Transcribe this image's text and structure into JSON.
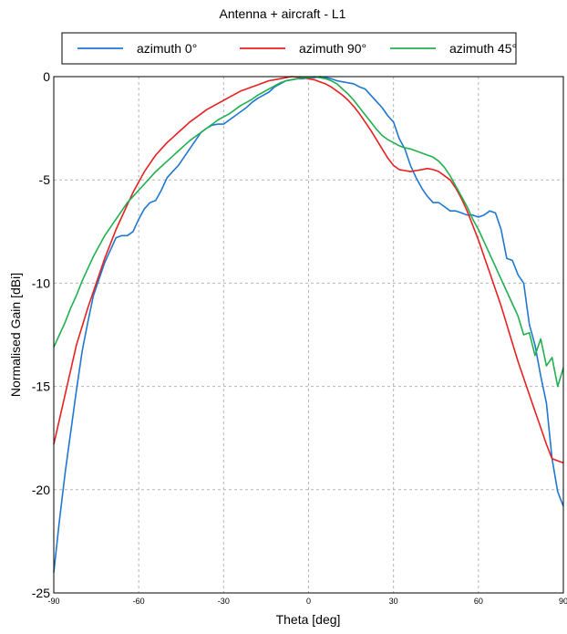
{
  "chart_data": {
    "type": "line",
    "title": "Antenna + aircraft - L1",
    "xlabel": "Theta [deg]",
    "ylabel": "Normalised Gain [dBi]",
    "xlim": [
      -90,
      90
    ],
    "ylim": [
      -25,
      0
    ],
    "xticks": [
      -90,
      -60,
      -30,
      0,
      30,
      60,
      90
    ],
    "yticks": [
      0,
      -5,
      -10,
      -15,
      -20,
      -25
    ],
    "grid": true,
    "legend_position": "top",
    "series": [
      {
        "name": "azimuth 0°",
        "color": "#1f77d0",
        "x": [
          -90,
          -88,
          -86,
          -84,
          -82,
          -80,
          -78,
          -76,
          -74,
          -72,
          -70,
          -68,
          -66,
          -64,
          -62,
          -60,
          -58,
          -56,
          -54,
          -52,
          -50,
          -48,
          -46,
          -44,
          -42,
          -40,
          -38,
          -36,
          -34,
          -32,
          -30,
          -28,
          -26,
          -24,
          -22,
          -20,
          -18,
          -16,
          -14,
          -12,
          -10,
          -8,
          -6,
          -4,
          -2,
          0,
          2,
          4,
          6,
          8,
          10,
          12,
          14,
          16,
          18,
          20,
          22,
          24,
          26,
          28,
          30,
          32,
          34,
          36,
          38,
          40,
          42,
          44,
          46,
          48,
          50,
          52,
          54,
          56,
          58,
          60,
          62,
          64,
          66,
          68,
          70,
          72,
          74,
          76,
          78,
          80,
          82,
          84,
          86,
          88,
          90
        ],
        "y": [
          -24.0,
          -21.5,
          -19.2,
          -17.2,
          -15.2,
          -13.3,
          -11.9,
          -10.6,
          -9.8,
          -9.0,
          -8.4,
          -7.8,
          -7.7,
          -7.7,
          -7.5,
          -6.9,
          -6.4,
          -6.1,
          -6.0,
          -5.5,
          -4.9,
          -4.6,
          -4.3,
          -3.9,
          -3.5,
          -3.1,
          -2.7,
          -2.5,
          -2.35,
          -2.3,
          -2.3,
          -2.1,
          -1.9,
          -1.7,
          -1.5,
          -1.25,
          -1.05,
          -0.9,
          -0.75,
          -0.5,
          -0.35,
          -0.2,
          -0.15,
          -0.1,
          -0.1,
          -0.05,
          -0.05,
          0.0,
          -0.05,
          -0.1,
          -0.2,
          -0.25,
          -0.3,
          -0.35,
          -0.5,
          -0.6,
          -0.9,
          -1.2,
          -1.5,
          -1.9,
          -2.2,
          -3.0,
          -3.5,
          -4.3,
          -4.9,
          -5.4,
          -5.8,
          -6.1,
          -6.1,
          -6.3,
          -6.5,
          -6.5,
          -6.6,
          -6.7,
          -6.7,
          -6.8,
          -6.7,
          -6.5,
          -6.6,
          -7.4,
          -8.8,
          -8.9,
          -9.6,
          -10.0,
          -12.0,
          -13.0,
          -14.5,
          -15.8,
          -18.5,
          -20.1,
          -20.8
        ]
      },
      {
        "name": "azimuth 90°",
        "color": "#e82020",
        "x": [
          -90,
          -88,
          -86,
          -84,
          -82,
          -80,
          -78,
          -76,
          -74,
          -72,
          -70,
          -68,
          -66,
          -64,
          -62,
          -60,
          -58,
          -56,
          -54,
          -52,
          -50,
          -48,
          -46,
          -44,
          -42,
          -40,
          -38,
          -36,
          -34,
          -32,
          -30,
          -28,
          -26,
          -24,
          -22,
          -20,
          -18,
          -16,
          -14,
          -12,
          -10,
          -8,
          -6,
          -4,
          -2,
          0,
          2,
          4,
          6,
          8,
          10,
          12,
          14,
          16,
          18,
          20,
          22,
          24,
          26,
          28,
          30,
          32,
          34,
          36,
          38,
          40,
          42,
          44,
          46,
          48,
          50,
          52,
          54,
          56,
          58,
          60,
          62,
          64,
          66,
          68,
          70,
          72,
          74,
          76,
          78,
          80,
          82,
          84,
          86,
          88,
          90
        ],
        "y": [
          -17.8,
          -16.6,
          -15.4,
          -14.2,
          -13.0,
          -12.1,
          -11.2,
          -10.4,
          -9.6,
          -8.8,
          -8.1,
          -7.4,
          -6.8,
          -6.2,
          -5.6,
          -5.1,
          -4.6,
          -4.2,
          -3.8,
          -3.5,
          -3.2,
          -2.95,
          -2.7,
          -2.45,
          -2.2,
          -2.0,
          -1.8,
          -1.6,
          -1.45,
          -1.3,
          -1.15,
          -1.0,
          -0.85,
          -0.7,
          -0.6,
          -0.5,
          -0.4,
          -0.3,
          -0.2,
          -0.15,
          -0.1,
          -0.05,
          0.0,
          -0.02,
          -0.05,
          -0.1,
          -0.15,
          -0.25,
          -0.35,
          -0.5,
          -0.7,
          -0.9,
          -1.15,
          -1.45,
          -1.8,
          -2.2,
          -2.6,
          -3.05,
          -3.5,
          -3.95,
          -4.3,
          -4.5,
          -4.55,
          -4.6,
          -4.55,
          -4.5,
          -4.45,
          -4.5,
          -4.6,
          -4.8,
          -5.0,
          -5.4,
          -5.9,
          -6.5,
          -7.2,
          -7.9,
          -8.7,
          -9.5,
          -10.3,
          -11.1,
          -12.0,
          -12.9,
          -13.8,
          -14.6,
          -15.4,
          -16.2,
          -17.0,
          -17.8,
          -18.5,
          -18.6,
          -18.7
        ]
      },
      {
        "name": "azimuth 45°",
        "color": "#20b050",
        "x": [
          -90,
          -88,
          -86,
          -84,
          -82,
          -80,
          -78,
          -76,
          -74,
          -72,
          -70,
          -68,
          -66,
          -64,
          -62,
          -60,
          -58,
          -56,
          -54,
          -52,
          -50,
          -48,
          -46,
          -44,
          -42,
          -40,
          -38,
          -36,
          -34,
          -32,
          -30,
          -28,
          -26,
          -24,
          -22,
          -20,
          -18,
          -16,
          -14,
          -12,
          -10,
          -8,
          -6,
          -4,
          -2,
          0,
          2,
          4,
          6,
          8,
          10,
          12,
          14,
          16,
          18,
          20,
          22,
          24,
          26,
          28,
          30,
          32,
          34,
          36,
          38,
          40,
          42,
          44,
          46,
          48,
          50,
          52,
          54,
          56,
          58,
          60,
          62,
          64,
          66,
          68,
          70,
          72,
          74,
          76,
          78,
          80,
          82,
          84,
          86,
          88,
          90
        ],
        "y": [
          -13.1,
          -12.5,
          -11.9,
          -11.2,
          -10.6,
          -9.9,
          -9.3,
          -8.7,
          -8.2,
          -7.7,
          -7.3,
          -6.9,
          -6.5,
          -6.1,
          -5.8,
          -5.5,
          -5.2,
          -4.9,
          -4.6,
          -4.35,
          -4.1,
          -3.85,
          -3.6,
          -3.35,
          -3.1,
          -2.9,
          -2.7,
          -2.5,
          -2.3,
          -2.1,
          -1.95,
          -1.8,
          -1.6,
          -1.4,
          -1.25,
          -1.1,
          -0.9,
          -0.75,
          -0.6,
          -0.45,
          -0.3,
          -0.2,
          -0.15,
          -0.1,
          -0.05,
          -0.05,
          0.0,
          -0.05,
          -0.1,
          -0.2,
          -0.35,
          -0.6,
          -0.85,
          -1.15,
          -1.5,
          -1.85,
          -2.2,
          -2.55,
          -2.85,
          -3.05,
          -3.2,
          -3.35,
          -3.45,
          -3.5,
          -3.6,
          -3.7,
          -3.8,
          -3.9,
          -4.1,
          -4.4,
          -4.8,
          -5.3,
          -5.8,
          -6.3,
          -6.9,
          -7.4,
          -8.0,
          -8.6,
          -9.2,
          -9.8,
          -10.4,
          -11.0,
          -11.6,
          -12.5,
          -12.4,
          -13.5,
          -12.7,
          -14.0,
          -13.6,
          -15.0,
          -14.1
        ]
      }
    ]
  }
}
